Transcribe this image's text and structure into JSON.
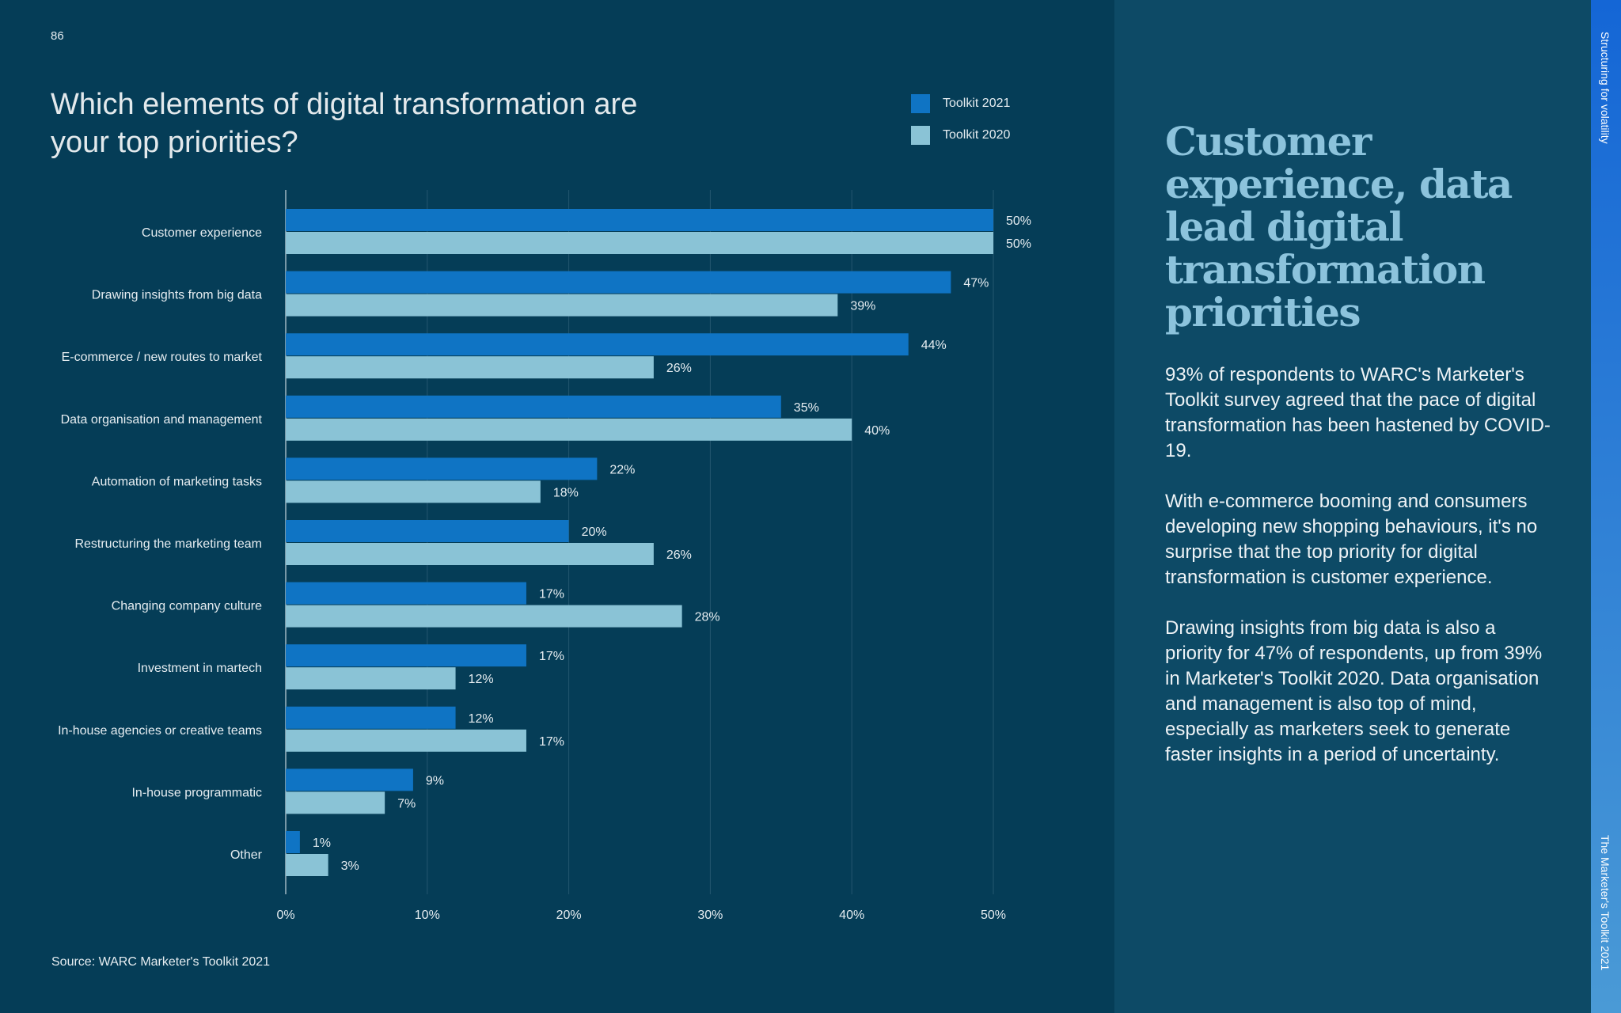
{
  "page_number": "86",
  "section_tab": "Structuring for volatility",
  "publication_tab": "The Marketer's Toolkit 2021",
  "panel": {
    "heading": "Customer experience, data lead digital transformation priorities",
    "paragraphs": [
      "93% of respondents to WARC's Marketer's Toolkit survey agreed that the pace of digital transformation has been hastened by COVID-19.",
      "With e-commerce booming and consumers developing new shopping behaviours, it's no surprise that the top priority for digital transformation is customer experience.",
      "Drawing insights from big data is also a priority for 47% of respondents, up from 39% in Marketer's Toolkit 2020. Data organisation and management is also top of mind, especially as marketers seek to generate faster insights in a period of uncertainty."
    ]
  },
  "chart_data": {
    "type": "bar",
    "orientation": "horizontal",
    "title": "Which elements of digital transformation are your top priorities?",
    "source": "Source: WARC Marketer's Toolkit 2021",
    "categories": [
      "Customer experience",
      "Drawing insights from big data",
      "E-commerce / new routes to market",
      "Data organisation and management",
      "Automation of marketing tasks",
      "Restructuring the marketing team",
      "Changing company culture",
      "Investment in martech",
      "In-house agencies or creative teams",
      "In-house programmatic",
      "Other"
    ],
    "series": [
      {
        "name": "Toolkit 2021",
        "color": "#0f74c4",
        "values": [
          50,
          47,
          44,
          35,
          22,
          20,
          17,
          17,
          12,
          9,
          1
        ]
      },
      {
        "name": "Toolkit 2020",
        "color": "#8ac3d6",
        "values": [
          50,
          39,
          26,
          40,
          18,
          26,
          28,
          12,
          17,
          7,
          3
        ]
      }
    ],
    "xlim": [
      0,
      50
    ],
    "xticks": [
      "0%",
      "10%",
      "20%",
      "30%",
      "40%",
      "50%"
    ],
    "grid": true,
    "legend": "top-right",
    "value_suffix": "%"
  }
}
